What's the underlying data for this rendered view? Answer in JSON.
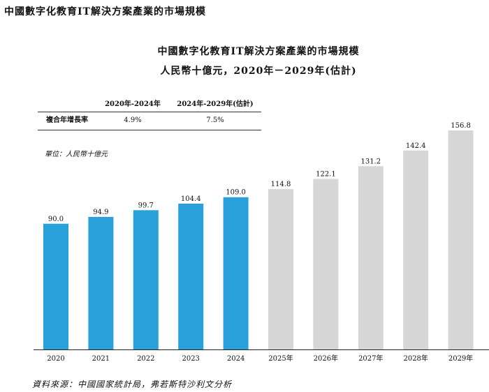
{
  "heading": "中國數字化教育IT解決方案產業的市場規模",
  "chart_title_line1": "中國數字化教育IT解決方案產業的市場規模",
  "chart_title_line2": "人民幣十億元，2020年－2029年(估計)",
  "cagr_table": {
    "headers": [
      "2020年-2024年",
      "2024年-2029年(估計)"
    ],
    "row_label": "複合年增長率",
    "values": [
      "4.9%",
      "7.5%"
    ]
  },
  "unit_label": "單位：人民幣十億元",
  "source": "資料來源：中國國家統計局，弗若斯特沙利文分析",
  "colors": {
    "historical": "#2AA0DA",
    "forecast": "#D6D6D6"
  },
  "chart_data": {
    "type": "bar",
    "categories": [
      "2020",
      "2021",
      "2022",
      "2023",
      "2024",
      "2025年",
      "2026年",
      "2027年",
      "2028年",
      "2029年"
    ],
    "values": [
      90.0,
      94.9,
      99.7,
      104.4,
      109.0,
      114.8,
      122.1,
      131.2,
      142.4,
      156.8
    ],
    "value_labels": [
      "90.0",
      "94.9",
      "99.7",
      "104.4",
      "109.0",
      "114.8",
      "122.1",
      "131.2",
      "142.4",
      "156.8"
    ],
    "forecast_from_index": 5,
    "ylim": [
      0,
      160
    ],
    "grid": false,
    "legend": "none"
  }
}
